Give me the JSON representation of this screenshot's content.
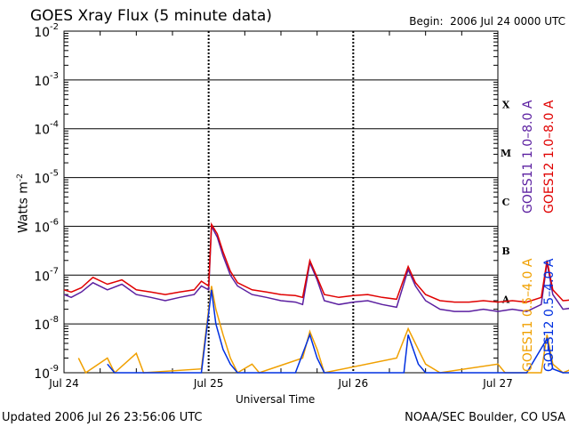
{
  "header": {
    "title": "GOES Xray Flux (5 minute data)",
    "begin_label": "Begin:",
    "begin_value": "2006 Jul 24 0000 UTC"
  },
  "footer": {
    "updated": "Updated 2006 Jul 26 23:56:06 UTC",
    "credit": "NOAA/SEC Boulder, CO USA"
  },
  "colors": {
    "goes11_long": "#5b1fa0",
    "goes12_long": "#e00000",
    "goes11_short": "#f0a000",
    "goes12_short": "#0030e0"
  },
  "chart_data": {
    "type": "line",
    "title": "GOES Xray Flux (5 minute data)",
    "xlabel": "Universal Time",
    "ylabel": "Watts m",
    "ylabel_sup": "-2",
    "y_scale": "log",
    "ylim": [
      1e-09,
      0.01
    ],
    "xlim": [
      "2006-07-24 00:00",
      "2006-07-27 00:00"
    ],
    "y_ticks": [
      {
        "base": "10",
        "exp": "-2",
        "value": 0.01
      },
      {
        "base": "10",
        "exp": "-3",
        "value": 0.001
      },
      {
        "base": "10",
        "exp": "-4",
        "value": 0.0001
      },
      {
        "base": "10",
        "exp": "-5",
        "value": 1e-05
      },
      {
        "base": "10",
        "exp": "-6",
        "value": 1e-06
      },
      {
        "base": "10",
        "exp": "-7",
        "value": 1e-07
      },
      {
        "base": "10",
        "exp": "-8",
        "value": 1e-08
      },
      {
        "base": "10",
        "exp": "-9",
        "value": 1e-09
      }
    ],
    "x_ticks": [
      "Jul 24",
      "Jul 25",
      "Jul 26",
      "Jul 27"
    ],
    "flare_classes": [
      {
        "label": "X",
        "value": 0.0001
      },
      {
        "label": "M",
        "value": 1e-05
      },
      {
        "label": "C",
        "value": 1e-06
      },
      {
        "label": "B",
        "value": 1e-07
      },
      {
        "label": "A",
        "value": 1e-08
      }
    ],
    "series": [
      {
        "name": "GOES11 1.0-8.0 A",
        "color": "#5b1fa0",
        "points": [
          [
            0,
            4e-08
          ],
          [
            0.05,
            3.5e-08
          ],
          [
            0.12,
            4.5e-08
          ],
          [
            0.2,
            7e-08
          ],
          [
            0.3,
            5e-08
          ],
          [
            0.4,
            6.5e-08
          ],
          [
            0.5,
            4e-08
          ],
          [
            0.6,
            3.5e-08
          ],
          [
            0.7,
            3e-08
          ],
          [
            0.8,
            3.5e-08
          ],
          [
            0.9,
            4e-08
          ],
          [
            0.95,
            6e-08
          ],
          [
            1.0,
            5e-08
          ],
          [
            1.02,
            1e-06
          ],
          [
            1.06,
            6e-07
          ],
          [
            1.1,
            2.5e-07
          ],
          [
            1.15,
            1e-07
          ],
          [
            1.2,
            6e-08
          ],
          [
            1.3,
            4e-08
          ],
          [
            1.4,
            3.5e-08
          ],
          [
            1.5,
            3e-08
          ],
          [
            1.6,
            2.8e-08
          ],
          [
            1.65,
            2.5e-08
          ],
          [
            1.7,
            1.8e-07
          ],
          [
            1.75,
            8e-08
          ],
          [
            1.8,
            3e-08
          ],
          [
            1.9,
            2.5e-08
          ],
          [
            2.0,
            2.8e-08
          ],
          [
            2.1,
            3e-08
          ],
          [
            2.2,
            2.5e-08
          ],
          [
            2.3,
            2.2e-08
          ],
          [
            2.38,
            1.3e-07
          ],
          [
            2.43,
            6e-08
          ],
          [
            2.5,
            3e-08
          ],
          [
            2.6,
            2e-08
          ],
          [
            2.7,
            1.8e-08
          ],
          [
            2.8,
            1.8e-08
          ],
          [
            2.9,
            2e-08
          ],
          [
            3.0,
            1.8e-08
          ],
          [
            3.1,
            2e-08
          ],
          [
            3.2,
            1.8e-08
          ],
          [
            3.3,
            2.5e-08
          ],
          [
            3.34,
            1.8e-07
          ],
          [
            3.38,
            4e-08
          ],
          [
            3.45,
            2e-08
          ],
          [
            3.55,
            2.2e-08
          ],
          [
            3.65,
            2e-08
          ],
          [
            3.75,
            2.5e-08
          ],
          [
            3.85,
            2e-08
          ],
          [
            3.95,
            1.8e-08
          ],
          [
            4.0,
            2e-08
          ]
        ]
      },
      {
        "name": "GOES12 1.0-8.0 A",
        "color": "#e00000",
        "points": [
          [
            0,
            5e-08
          ],
          [
            0.05,
            4.5e-08
          ],
          [
            0.12,
            5.5e-08
          ],
          [
            0.2,
            9e-08
          ],
          [
            0.3,
            6.5e-08
          ],
          [
            0.4,
            8e-08
          ],
          [
            0.5,
            5e-08
          ],
          [
            0.6,
            4.5e-08
          ],
          [
            0.7,
            4e-08
          ],
          [
            0.8,
            4.5e-08
          ],
          [
            0.9,
            5e-08
          ],
          [
            0.95,
            7.5e-08
          ],
          [
            1.0,
            6e-08
          ],
          [
            1.02,
            1.1e-06
          ],
          [
            1.06,
            7e-07
          ],
          [
            1.1,
            3e-07
          ],
          [
            1.15,
            1.2e-07
          ],
          [
            1.2,
            7e-08
          ],
          [
            1.3,
            5e-08
          ],
          [
            1.4,
            4.5e-08
          ],
          [
            1.5,
            4e-08
          ],
          [
            1.6,
            3.8e-08
          ],
          [
            1.65,
            3.5e-08
          ],
          [
            1.7,
            2e-07
          ],
          [
            1.75,
            9e-08
          ],
          [
            1.8,
            4e-08
          ],
          [
            1.9,
            3.5e-08
          ],
          [
            2.0,
            3.8e-08
          ],
          [
            2.1,
            4e-08
          ],
          [
            2.2,
            3.5e-08
          ],
          [
            2.3,
            3.2e-08
          ],
          [
            2.38,
            1.5e-07
          ],
          [
            2.43,
            7e-08
          ],
          [
            2.5,
            4e-08
          ],
          [
            2.6,
            3e-08
          ],
          [
            2.7,
            2.8e-08
          ],
          [
            2.8,
            2.8e-08
          ],
          [
            2.9,
            3e-08
          ],
          [
            3.0,
            2.8e-08
          ],
          [
            3.1,
            3e-08
          ],
          [
            3.2,
            2.8e-08
          ],
          [
            3.3,
            3.5e-08
          ],
          [
            3.34,
            2e-07
          ],
          [
            3.38,
            5e-08
          ],
          [
            3.45,
            3e-08
          ],
          [
            3.55,
            3.2e-08
          ],
          [
            3.65,
            3e-08
          ],
          [
            3.75,
            3.5e-08
          ],
          [
            3.85,
            3e-08
          ],
          [
            3.95,
            2.8e-08
          ],
          [
            4.0,
            3e-08
          ]
        ]
      },
      {
        "name": "GOES11 0.5-4.0 A",
        "color": "#f0a000",
        "points": [
          [
            0.1,
            2e-09
          ],
          [
            0.15,
            1e-09
          ],
          [
            0.3,
            2e-09
          ],
          [
            0.35,
            1e-09
          ],
          [
            0.5,
            2.5e-09
          ],
          [
            0.55,
            1e-09
          ],
          [
            0.95,
            1.2e-09
          ],
          [
            1.02,
            6e-08
          ],
          [
            1.05,
            2e-08
          ],
          [
            1.1,
            6e-09
          ],
          [
            1.15,
            2e-09
          ],
          [
            1.2,
            1e-09
          ],
          [
            1.3,
            1.5e-09
          ],
          [
            1.35,
            1e-09
          ],
          [
            1.65,
            2e-09
          ],
          [
            1.7,
            7e-09
          ],
          [
            1.75,
            3e-09
          ],
          [
            1.8,
            1e-09
          ],
          [
            2.3,
            2e-09
          ],
          [
            2.38,
            8e-09
          ],
          [
            2.45,
            3e-09
          ],
          [
            2.5,
            1.5e-09
          ],
          [
            2.6,
            1e-09
          ],
          [
            3.0,
            1.5e-09
          ],
          [
            3.05,
            1e-09
          ],
          [
            3.3,
            1e-09
          ],
          [
            3.34,
            6e-09
          ],
          [
            3.38,
            1.5e-09
          ],
          [
            3.45,
            1e-09
          ],
          [
            3.7,
            2e-09
          ],
          [
            3.75,
            1e-09
          ],
          [
            4.0,
            1e-09
          ]
        ]
      },
      {
        "name": "GOES12 0.5-4.0 A",
        "color": "#0030e0",
        "points": [
          [
            0.3,
            1.5e-09
          ],
          [
            0.35,
            1e-09
          ],
          [
            0.95,
            1e-09
          ],
          [
            1.02,
            5e-08
          ],
          [
            1.05,
            1e-08
          ],
          [
            1.1,
            3e-09
          ],
          [
            1.15,
            1.5e-09
          ],
          [
            1.2,
            1e-09
          ],
          [
            1.6,
            1e-09
          ],
          [
            1.7,
            6e-09
          ],
          [
            1.75,
            2e-09
          ],
          [
            1.8,
            1e-09
          ],
          [
            2.35,
            1e-09
          ],
          [
            2.38,
            6e-09
          ],
          [
            2.45,
            1.5e-09
          ],
          [
            2.5,
            1e-09
          ],
          [
            3.2,
            1e-09
          ],
          [
            3.34,
            5e-09
          ],
          [
            3.38,
            1.2e-09
          ],
          [
            3.45,
            1e-09
          ],
          [
            4.0,
            1e-09
          ]
        ]
      }
    ],
    "legend": [
      {
        "text": "GOES11 1.0–8.0 A",
        "color": "#5b1fa0"
      },
      {
        "text": "GOES12 1.0–8.0 A",
        "color": "#e00000"
      },
      {
        "text": "GOES11 0.5–4.0 A",
        "color": "#f0a000"
      },
      {
        "text": "GOES12 0.5–4.0 A",
        "color": "#0030e0"
      }
    ]
  }
}
